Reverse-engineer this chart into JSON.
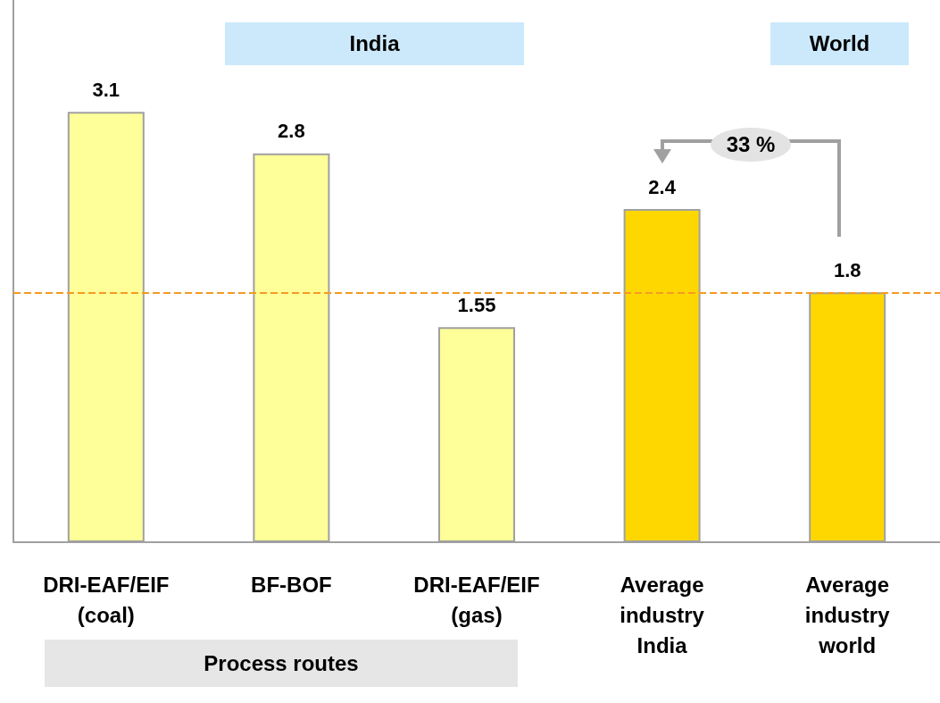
{
  "chart_data": {
    "type": "bar",
    "categories": [
      "DRI-EAF/EIF\n(coal)",
      "BF-BOF",
      "DRI-EAF/EIF\n(gas)",
      "Average\nindustry\nIndia",
      "Average\nindustry\nworld"
    ],
    "values": [
      3.1,
      2.8,
      1.55,
      2.4,
      1.8
    ],
    "colors": [
      "#ffff99",
      "#ffff99",
      "#ffff99",
      "#ffd700",
      "#ffd700"
    ],
    "data_labels": true,
    "grid": false,
    "tick_labels": "x",
    "ref_lines": [
      {
        "axis": "y",
        "value": 1.8,
        "color": "#f59a23",
        "line_style": "dashed"
      }
    ],
    "annotations": [
      "India",
      "World",
      "33 %",
      "Process routes"
    ]
  }
}
